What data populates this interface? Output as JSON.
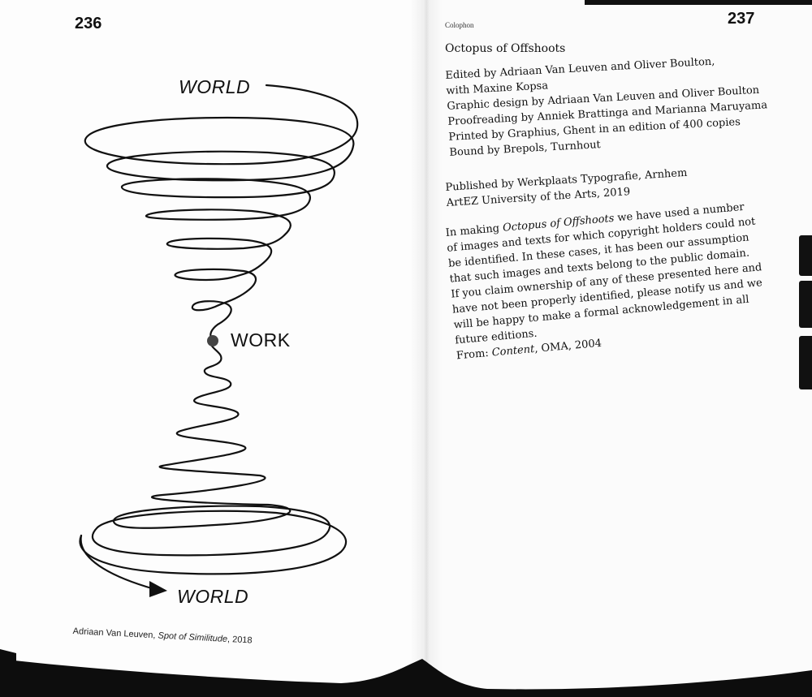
{
  "left_page": {
    "page_number": "236",
    "diagram": {
      "label_top": "WORLD",
      "label_center": "WORK",
      "label_bottom": "WORLD"
    },
    "caption": {
      "author": "Adriaan Van Leuven, ",
      "title": "Spot of Similitude",
      "year": ", 2018"
    }
  },
  "right_page": {
    "page_number": "237",
    "section_label": "Colophon",
    "title": "Octopus of Offshoots",
    "credits": [
      "Edited by Adriaan Van Leuven and Oliver Boulton,",
      "with Maxine Kopsa",
      "Graphic design by Adriaan Van Leuven and Oliver Boulton",
      "Proofreading by Anniek Brattinga and Marianna Maruyama",
      "Printed by Graphius, Ghent in an edition of 400 copies",
      "Bound by Brepols, Turnhout"
    ],
    "publication": [
      "Published by Werkplaats Typografie, Arnhem",
      "ArtEZ University of the Arts, 2019"
    ],
    "rights": {
      "line1_pre": "In making ",
      "line1_title": "Octopus of Offshoots",
      "line1_post": " we have used a number",
      "lines": [
        "of images and texts for which copyright holders could not",
        "be identified. In these cases, it has been our assumption",
        "that such images and texts belong to the public domain.",
        "If you claim ownership of any of these presented here and",
        "have not been properly identified, please notify us and we",
        "will be happy to make a formal acknowledgement in all",
        "future editions."
      ],
      "from_pre": "From: ",
      "from_title": "Content",
      "from_post": ", OMA, 2004"
    }
  }
}
